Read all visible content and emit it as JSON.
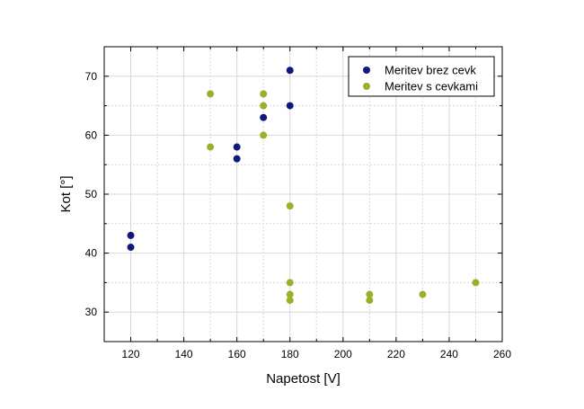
{
  "chart_data": {
    "type": "scatter",
    "title": "",
    "xlabel": "Napetost [V]",
    "ylabel": "Kot [°]",
    "xlim": [
      110,
      260
    ],
    "ylim": [
      25,
      75
    ],
    "x_ticks": [
      120,
      140,
      160,
      180,
      200,
      220,
      240,
      260
    ],
    "y_ticks": [
      30,
      40,
      50,
      60,
      70
    ],
    "grid": true,
    "legend_position": "top-right",
    "series": [
      {
        "name": "Meritev brez cevk",
        "color": "#0d1a7a",
        "points": [
          [
            120,
            43
          ],
          [
            120,
            41
          ],
          [
            160,
            58
          ],
          [
            160,
            56
          ],
          [
            170,
            63
          ],
          [
            180,
            71
          ],
          [
            180,
            65
          ]
        ]
      },
      {
        "name": "Meritev s cevkami",
        "color": "#9aaf2a",
        "points": [
          [
            150,
            67
          ],
          [
            150,
            58
          ],
          [
            170,
            67
          ],
          [
            170,
            65
          ],
          [
            170,
            60
          ],
          [
            180,
            48
          ],
          [
            180,
            35
          ],
          [
            180,
            33
          ],
          [
            180,
            32
          ],
          [
            210,
            33
          ],
          [
            210,
            32
          ],
          [
            230,
            33
          ],
          [
            250,
            35
          ]
        ]
      }
    ]
  }
}
